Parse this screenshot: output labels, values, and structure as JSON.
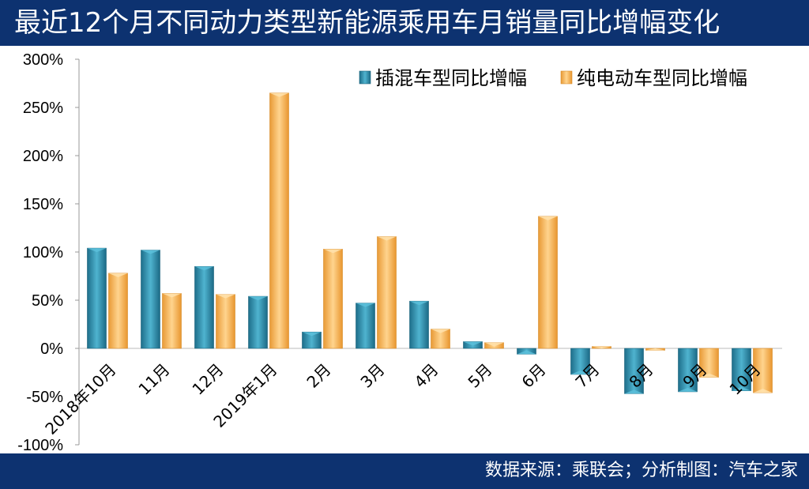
{
  "header": {
    "title": "最近12个月不同动力类型新能源乘用车月销量同比增幅变化"
  },
  "footer": {
    "source": "数据来源：乘联会；分析制图：汽车之家"
  },
  "colors": {
    "header_bg": "#0d3270",
    "phev": "#2a8fae",
    "bev": "#f5ae4a"
  },
  "chart_data": {
    "type": "bar",
    "title": "最近12个月不同动力类型新能源乘用车月销量同比增幅变化",
    "xlabel": "",
    "ylabel": "",
    "categories": [
      "2018年10月",
      "11月",
      "12月",
      "2019年1月",
      "2月",
      "3月",
      "4月",
      "5月",
      "6月",
      "7月",
      "8月",
      "9月",
      "10月"
    ],
    "series": [
      {
        "name": "插混车型同比增幅",
        "color": "#2a8fae",
        "values": [
          104,
          102,
          85,
          54,
          17,
          47,
          49,
          7,
          -6,
          -27,
          -47,
          -45,
          -44
        ]
      },
      {
        "name": "纯电动车型同比增幅",
        "color": "#f5ae4a",
        "values": [
          78,
          57,
          56,
          265,
          103,
          116,
          20,
          6,
          137,
          2,
          -2,
          -30,
          -46
        ]
      }
    ],
    "ylim": [
      -100,
      300
    ],
    "yticks": [
      -100,
      -50,
      0,
      50,
      100,
      150,
      200,
      250,
      300
    ],
    "ytick_labels": [
      "-100%",
      "-50%",
      "0%",
      "50%",
      "100%",
      "150%",
      "200%",
      "250%",
      "300%"
    ],
    "legend": "top-right",
    "grid": false
  }
}
